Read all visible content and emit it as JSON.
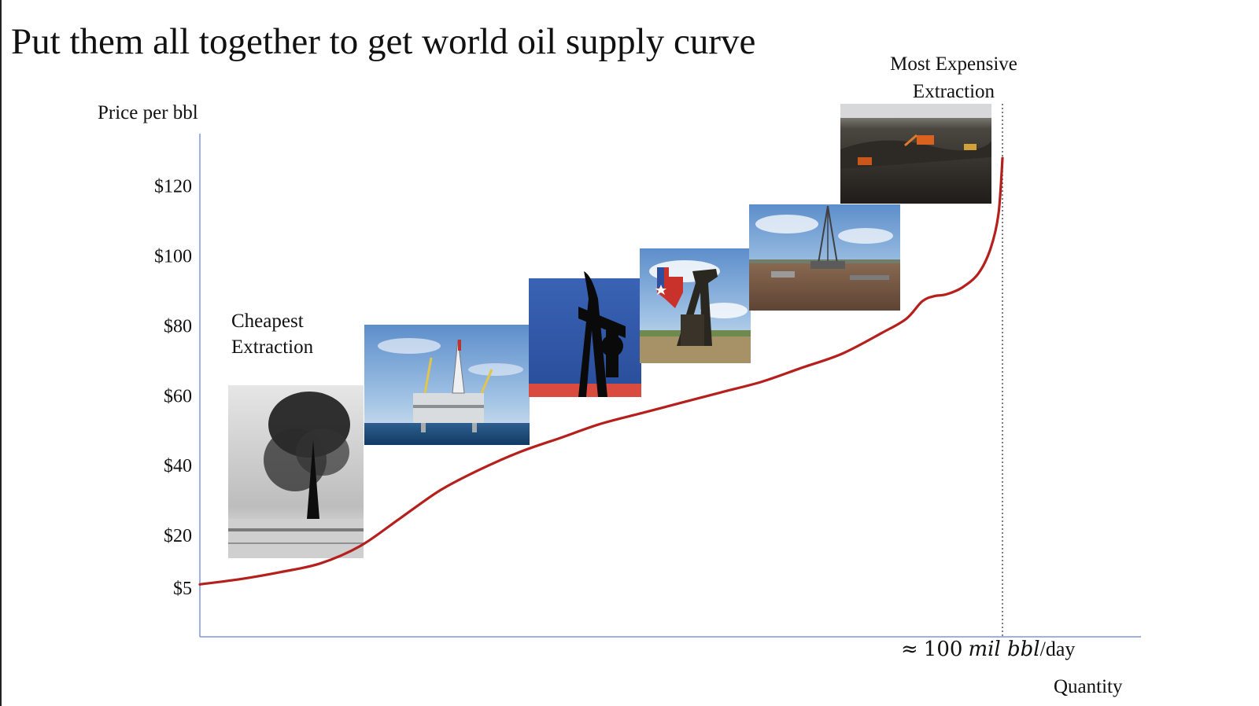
{
  "title": "Put them all together to get world oil supply curve",
  "labels": {
    "most_expensive": "Most Expensive",
    "most_expensive_2": "Extraction",
    "cheapest": "Cheapest",
    "cheapest_2": "Extraction"
  },
  "x_quantity": {
    "approx": "≈",
    "number": "100",
    "unit_italic": "mil bbl",
    "per": "/day"
  },
  "colors": {
    "curve": "#b5201c",
    "axis": "#7f97d8"
  },
  "photos": [
    "black-and-white-oil-gusher-photo",
    "offshore-oil-platform-photo",
    "russian-flag-pumpjack-photo",
    "texas-flag-pumpjack-photo",
    "shale-drilling-rig-photo",
    "oil-sands-mining-photo"
  ],
  "chart_data": {
    "type": "line",
    "ylabel": "Price per bbl",
    "xlabel": "Quantity",
    "yticks": [
      "$5",
      "$20",
      "$40",
      "$60",
      "$80",
      "$100",
      "$120"
    ],
    "ytick_values": [
      5,
      20,
      40,
      60,
      80,
      100,
      120
    ],
    "ylim": [
      0,
      135
    ],
    "xlim": [
      0,
      117
    ],
    "x_marker": 100,
    "series": [
      {
        "x": [
          0,
          5,
          10,
          15,
          20,
          25,
          30,
          35,
          40,
          45,
          50,
          55,
          60,
          65,
          70,
          75,
          80,
          85,
          88,
          90,
          91.5,
          93,
          95,
          97,
          98.5,
          99.5,
          100
        ],
        "values": [
          6,
          7.5,
          9.5,
          12,
          17,
          25,
          33,
          39,
          44,
          48,
          52,
          55,
          58,
          61,
          64,
          68,
          72,
          78,
          82,
          87,
          88.5,
          89,
          91,
          95,
          102,
          112,
          128
        ]
      }
    ]
  }
}
